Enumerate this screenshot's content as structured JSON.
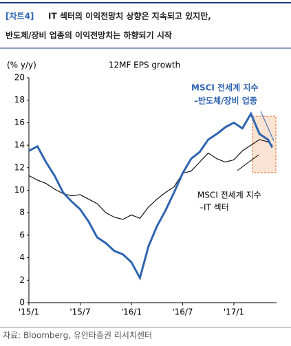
{
  "header": {
    "tag": "[차트4]",
    "line1": "IT 섹터의 이익전망치 상향은 지속되고 있지만,",
    "line2": "반도체/장비 업종의 이익전망치는 하향되기 시작"
  },
  "chart_data": {
    "type": "line",
    "title": "12MF EPS growth",
    "y_unit": "(% y/y)",
    "x": [
      0,
      1,
      2,
      3,
      4,
      5,
      6,
      7,
      8,
      9,
      10,
      11,
      12,
      13,
      14,
      15,
      16,
      17,
      18,
      19,
      20,
      21,
      22,
      23,
      24,
      25,
      26,
      27,
      28,
      28.5
    ],
    "series": [
      {
        "name": "MSCI 전세계 지수 –IT 섹터",
        "color": "#111111",
        "values": [
          11.3,
          10.9,
          10.6,
          10.1,
          9.7,
          9.5,
          9.6,
          9.2,
          8.8,
          8.0,
          7.6,
          7.4,
          7.8,
          7.5,
          8.5,
          9.2,
          9.8,
          10.3,
          11.5,
          11.7,
          12.5,
          13.3,
          12.8,
          12.5,
          12.7,
          13.5,
          14.0,
          14.5,
          14.3,
          14.0
        ]
      },
      {
        "name": "MSCI 전세계 지수 –반도체/장비 업종",
        "color": "#2e64b0",
        "values": [
          13.5,
          13.9,
          12.5,
          11.3,
          9.8,
          9.0,
          8.3,
          7.2,
          5.8,
          5.3,
          4.6,
          4.3,
          3.6,
          2.2,
          5.0,
          6.8,
          8.2,
          9.8,
          11.5,
          12.8,
          13.4,
          14.5,
          15.0,
          15.6,
          16.0,
          15.5,
          16.8,
          15.0,
          14.5,
          13.8
        ]
      }
    ],
    "annotations": {
      "semi_1": "MSCI 전세계 지수",
      "semi_2": "–반도체/장비 업종",
      "it_1": "MSCI 전세계 지수",
      "it_2": "–IT 섹터"
    },
    "xlim": [
      0,
      29
    ],
    "xticks": [
      {
        "value": 0,
        "label": "'15/1"
      },
      {
        "value": 6,
        "label": "'15/7"
      },
      {
        "value": 12,
        "label": "'16/1"
      },
      {
        "value": 18,
        "label": "'16/7"
      },
      {
        "value": 24,
        "label": "'17/1"
      }
    ],
    "ylim": [
      0,
      20
    ],
    "yticks": [
      0,
      2,
      4,
      6,
      8,
      10,
      12,
      14,
      16,
      18,
      20
    ],
    "source": "자료: Bloomberg, 유안타증권 리서치센터"
  }
}
